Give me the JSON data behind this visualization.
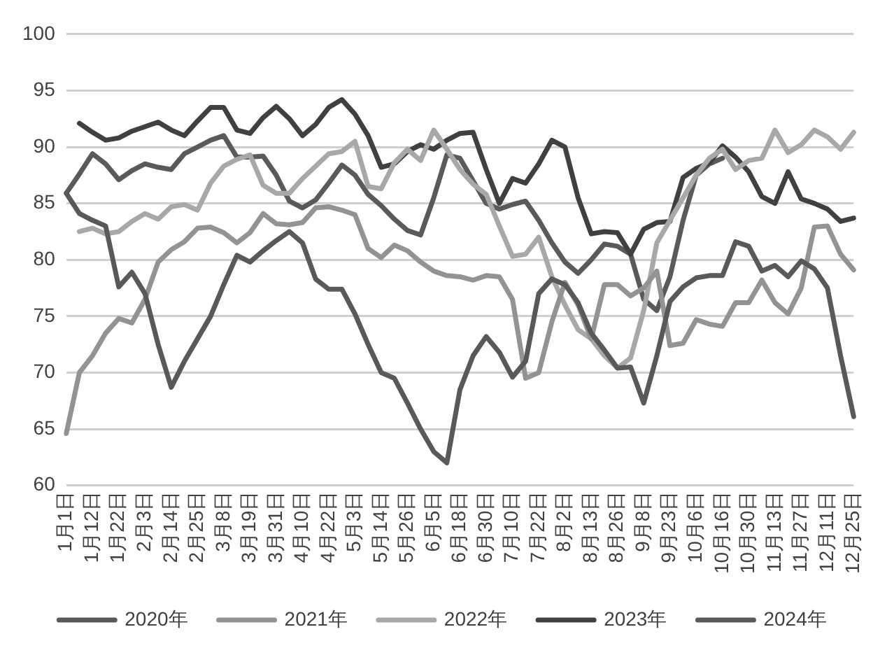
{
  "chart_data": {
    "type": "line",
    "categories": [
      "1月1日",
      null,
      "1月12日",
      null,
      "1月22日",
      null,
      "2月3日",
      null,
      "2月14日",
      null,
      "2月25日",
      null,
      "3月8日",
      null,
      "3月19日",
      null,
      "3月31日",
      null,
      "4月10日",
      null,
      "4月22日",
      null,
      "5月3日",
      null,
      "5月14日",
      null,
      "5月26日",
      null,
      "6月5日",
      null,
      "6月18日",
      null,
      "6月30日",
      null,
      "7月10日",
      null,
      "7月22日",
      null,
      "8月2日",
      null,
      "8月13日",
      null,
      "8月26日",
      null,
      "9月8日",
      null,
      "9月23日",
      null,
      "10月6日",
      null,
      "10月16日",
      null,
      "10月30日",
      null,
      "11月13日",
      null,
      "11月27日",
      null,
      "12月11日",
      null,
      "12月25日"
    ],
    "series": [
      {
        "name": "2020年",
        "color": "#595959",
        "values": [
          85.9,
          84.1,
          83.5,
          83,
          77.6,
          78.9,
          77,
          72.5,
          68.7,
          71,
          73,
          75,
          77.8,
          80.4,
          79.8,
          80.8,
          81.7,
          82.5,
          81.5,
          78.3,
          77.4,
          77.4,
          75.2,
          72.5,
          70,
          69.5,
          67.3,
          65,
          63,
          62,
          68.5,
          71.5,
          73.2,
          71.8,
          69.6,
          71,
          77,
          78.3,
          77.8,
          76.2,
          73.5,
          72,
          70.4,
          70.5,
          67.3,
          71.5,
          76.3,
          77.6,
          78.4,
          78.6,
          78.6,
          81.6,
          81.2,
          79,
          79.5,
          78.5,
          79.9,
          79.2,
          77.5,
          71.5,
          66.1
        ]
      },
      {
        "name": "2021年",
        "color": "#939393",
        "values": [
          64.6,
          70,
          71.5,
          73.5,
          74.8,
          74.4,
          76.5,
          79.8,
          80.9,
          81.6,
          82.8,
          82.9,
          82.4,
          81.5,
          82.4,
          84.1,
          83.2,
          83.1,
          83.3,
          84.6,
          84.7,
          84.4,
          84,
          81,
          80.2,
          81.3,
          80.8,
          79.8,
          79,
          78.6,
          78.5,
          78.2,
          78.6,
          78.5,
          76.5,
          69.5,
          70,
          74.5,
          78,
          76,
          73,
          77.8,
          77.8,
          76.8,
          77.5,
          79,
          72.4,
          72.6,
          74.7,
          74.3,
          74.1,
          76.2,
          76.2,
          78.2,
          76.2,
          75.2,
          77.5,
          82.9,
          83,
          80.5,
          79.1
        ]
      },
      {
        "name": "2022年",
        "color": "#a8a8a8",
        "values": [
          null,
          82.5,
          82.8,
          82.3,
          82.5,
          83.4,
          84.1,
          83.6,
          84.7,
          84.9,
          84.4,
          86.8,
          88.3,
          88.9,
          89.3,
          86.6,
          85.9,
          85.9,
          87.2,
          88.3,
          89.4,
          89.6,
          90.5,
          86.5,
          86.3,
          88.6,
          89.8,
          88.8,
          91.5,
          89.8,
          88,
          86.7,
          85.8,
          83,
          80.3,
          80.5,
          82,
          78.5,
          76,
          73.8,
          73,
          71.5,
          70.4,
          71.3,
          75.5,
          81.5,
          83.5,
          85.5,
          87.5,
          89,
          89.8,
          88,
          88.8,
          89,
          91.5,
          89.5,
          90.2,
          91.5,
          90.9,
          89.8,
          91.3
        ]
      },
      {
        "name": "2023年",
        "color": "#404040",
        "values": [
          null,
          92.1,
          91.3,
          90.6,
          90.8,
          91.4,
          91.8,
          92.2,
          91.5,
          91,
          92.3,
          93.5,
          93.5,
          91.5,
          91.2,
          92.6,
          93.6,
          92.5,
          91,
          92,
          93.5,
          94.2,
          92.9,
          91,
          88.2,
          88.5,
          89.6,
          90.2,
          89.8,
          90.6,
          91.2,
          91.3,
          88,
          85,
          87.2,
          86.8,
          88.5,
          90.6,
          90,
          85.5,
          82.3,
          82.5,
          82.4,
          80.5,
          82.7,
          83.3,
          83.4,
          87.3,
          88.1,
          88.6,
          90.1,
          89.1,
          87.8,
          85.6,
          85,
          87.8,
          85.4,
          85,
          84.5,
          83.4,
          83.7
        ]
      },
      {
        "name": "2024年",
        "color": "#5a5a5a",
        "values": [
          85.9,
          87.6,
          89.4,
          88.5,
          87.1,
          87.9,
          88.5,
          88.2,
          88,
          89.4,
          90,
          90.6,
          91,
          89.1,
          89.1,
          89.2,
          87.5,
          85.2,
          84.6,
          85.3,
          86.8,
          88.4,
          87.5,
          85.8,
          84.8,
          83.6,
          82.6,
          82.2,
          85.5,
          89.3,
          89,
          87,
          85,
          84.5,
          84.9,
          85.2,
          83.5,
          81.5,
          79.8,
          78.8,
          80,
          81.4,
          81.2,
          80.5,
          76.5,
          75.5,
          78.5,
          83.5,
          87.5,
          88.5,
          89,
          null,
          null,
          null,
          null,
          null,
          null,
          null,
          null,
          null,
          null
        ]
      }
    ],
    "ylim": [
      60,
      100
    ],
    "yticks": [
      60,
      65,
      70,
      75,
      80,
      85,
      90,
      95,
      100
    ],
    "grid": "y",
    "legend": "bottom",
    "marker": "none",
    "line_style": "solid"
  }
}
